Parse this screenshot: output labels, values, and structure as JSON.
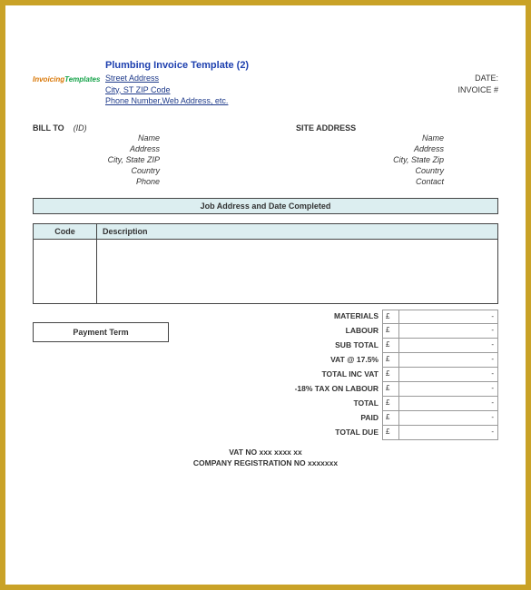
{
  "frame": {
    "border_color": "#c9a227",
    "page_bg": "#ffffff"
  },
  "header": {
    "logo_text_a": "Invoicing",
    "logo_text_b": "Templates",
    "title": "Plumbing Invoice Template (2)",
    "addr1": "Street Address",
    "addr2": "City, ST  ZIP Code",
    "addr3": "Phone Number,Web Address, etc.",
    "date_label": "DATE:",
    "invoice_label": "INVOICE #"
  },
  "billto": {
    "heading": "BILL TO",
    "id": "(ID)",
    "lines": [
      "Name",
      "Address",
      "City, State ZIP",
      "Country",
      "Phone"
    ]
  },
  "site": {
    "heading": "SITE ADDRESS",
    "lines": [
      "Name",
      "Address",
      "City, State Zip",
      "Country",
      "Contact"
    ]
  },
  "job_bar": "Job Address and Date Completed",
  "table": {
    "head_bg": "#dceef0",
    "border_color": "#444444",
    "columns": [
      "Code",
      "Description"
    ]
  },
  "payment_term_label": "Payment Term",
  "totals": {
    "currency": "£",
    "rows": [
      {
        "label": "MATERIALS",
        "value": "-"
      },
      {
        "label": "LABOUR",
        "value": "-"
      },
      {
        "label": "SUB TOTAL",
        "value": "-"
      },
      {
        "label": "VAT @ 17.5%",
        "value": "-"
      },
      {
        "label": "TOTAL INC VAT",
        "value": "-"
      },
      {
        "label": "-18% TAX ON LABOUR",
        "value": "-"
      },
      {
        "label": "TOTAL",
        "value": "-"
      },
      {
        "label": "PAID",
        "value": "-"
      },
      {
        "label": "TOTAL DUE",
        "value": "-"
      }
    ]
  },
  "footer": {
    "vat": "VAT NO  xxx xxxx xx",
    "reg": "COMPANY REGISTRATION NO  xxxxxxx"
  }
}
